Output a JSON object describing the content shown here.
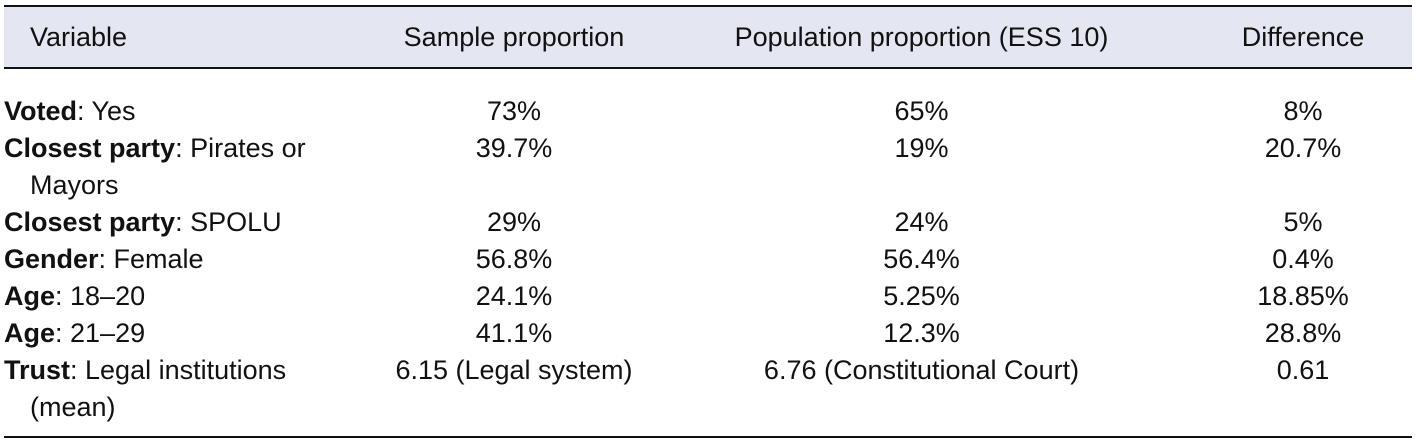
{
  "table": {
    "headers": {
      "variable": "Variable",
      "sample": "Sample proportion",
      "population": "Population proportion (ESS 10)",
      "difference": "Difference"
    },
    "rows": [
      {
        "var_bold": "Voted",
        "var_rest": ": Yes",
        "sample": "73%",
        "population": "65%",
        "difference": "8%"
      },
      {
        "var_bold": "Closest party",
        "var_rest": ": Pirates or Mayors",
        "sample": "39.7%",
        "population": "19%",
        "difference": "20.7%"
      },
      {
        "var_bold": "Closest party",
        "var_rest": ": SPOLU",
        "sample": "29%",
        "population": "24%",
        "difference": "5%"
      },
      {
        "var_bold": "Gender",
        "var_rest": ": Female",
        "sample": "56.8%",
        "population": "56.4%",
        "difference": "0.4%"
      },
      {
        "var_bold": "Age",
        "var_rest": ": 18–20",
        "sample": "24.1%",
        "population": "5.25%",
        "difference": "18.85%"
      },
      {
        "var_bold": "Age",
        "var_rest": ": 21–29",
        "sample": "41.1%",
        "population": "12.3%",
        "difference": "28.8%"
      },
      {
        "var_bold": "Trust",
        "var_rest": ": Legal institutions (mean)",
        "sample": "6.15 (Legal system)",
        "population": "6.76 (Constitutional Court)",
        "difference": "0.61"
      }
    ]
  }
}
